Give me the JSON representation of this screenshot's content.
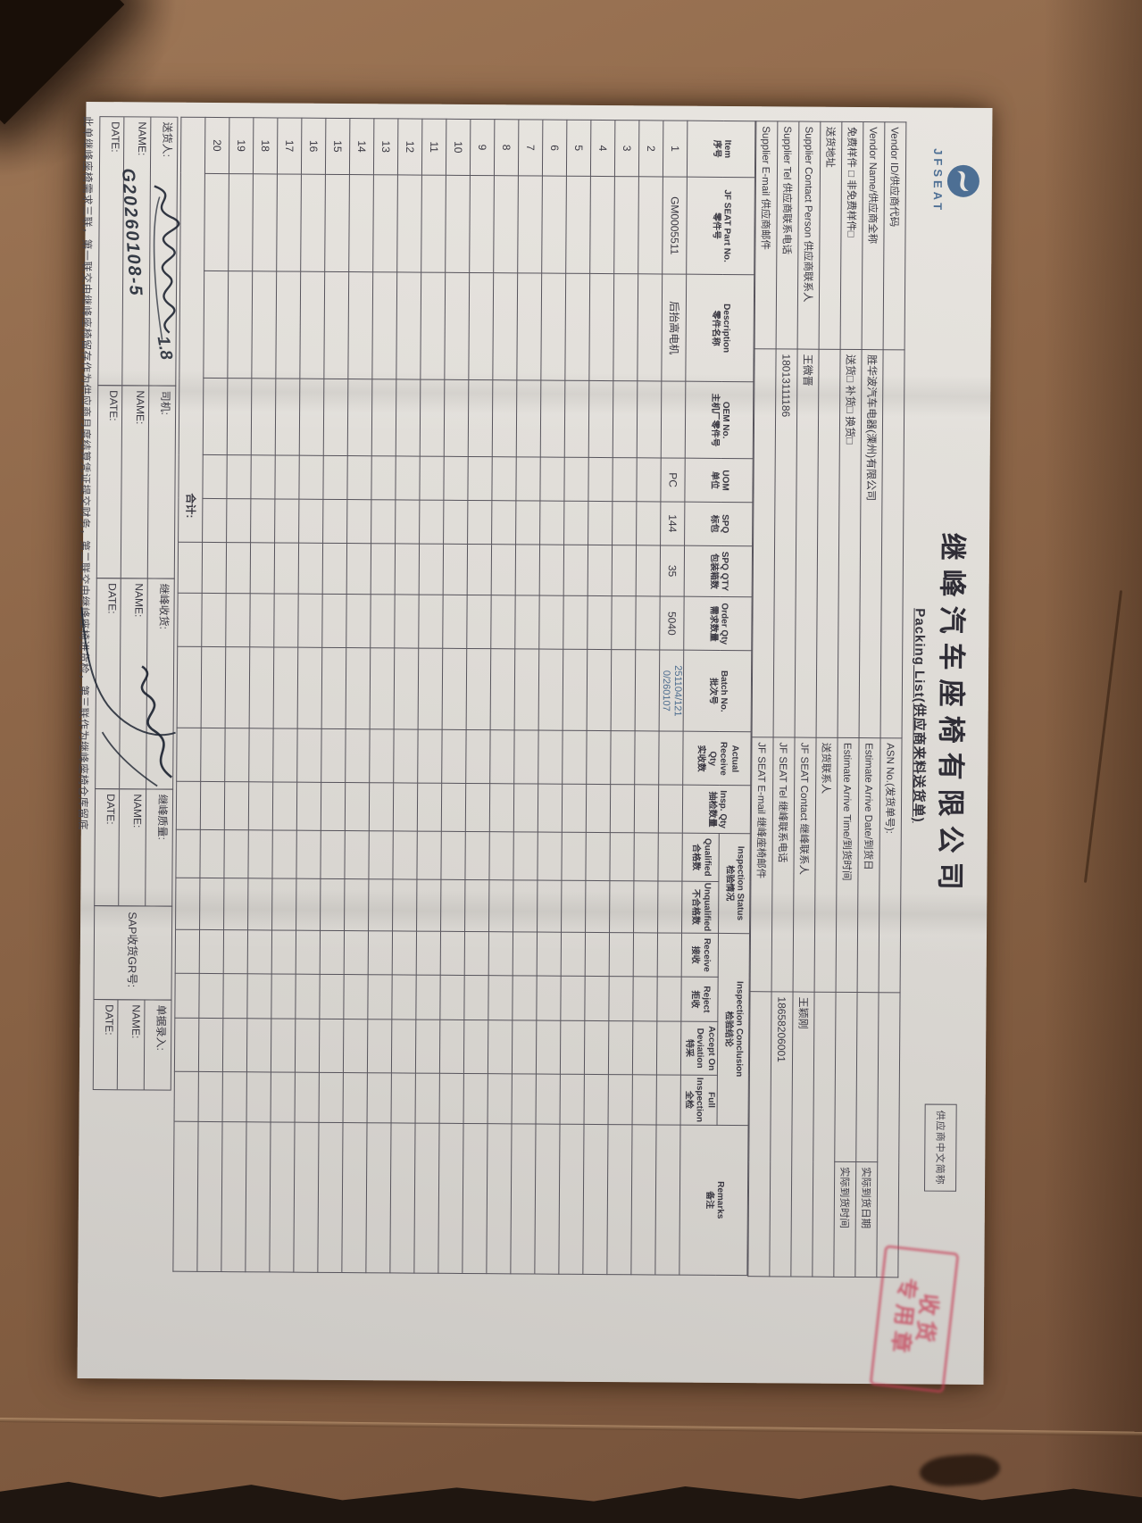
{
  "photo": {
    "background_hint": "brown cardboard surface, torn dark edge at bottom",
    "cardboard_color": "#8e6749"
  },
  "colors": {
    "ink": "#393741",
    "grid_line": "#57545c",
    "printed_blue": "#4a6b8e",
    "logo_blue": "#4d6f94",
    "stamp_red": "#c63e56"
  },
  "doc": {
    "brand": {
      "logo_icon": "jfseat-logo-icon",
      "logo_text": "JFSEAT"
    },
    "title": "继峰汽车座椅有限公司",
    "subtitle": "Packing List(供应商来料送货单)",
    "supplier_short_name_label": "供应商中文简称",
    "stamp": {
      "line1": "收货",
      "line2": "专用章"
    },
    "header": {
      "rows": [
        {
          "l": "Vendor ID/供应商代码",
          "lv": "",
          "r": "ASN No.(发货单号):",
          "rv": ""
        },
        {
          "l": "Vendor Name/供应商全称",
          "lv": "胜华波汽车电器(溧州)有限公司",
          "r": "Estimate Arrive Date/到货日",
          "rv": "",
          "extra": "实际到货日期"
        },
        {
          "l": "免费样件 □      非免费样件□",
          "lv": "送货□    补货□    换货□",
          "r": "Estimate Arrive Time/到货时间",
          "rv": "",
          "extra": "实际到货时间"
        },
        {
          "l": "送货地址",
          "lv": "",
          "r": "送货联系人",
          "rv": ""
        },
        {
          "l": "Supplier Contact Person 供应商联系人",
          "lv": "王微晋",
          "r": "JF SEAT Contact 继峰联系人",
          "rv": "王颖刚"
        },
        {
          "l": "Supplier Tel 供应商联系电话",
          "lv": "18013111186",
          "r": "JF SEAT Tel 继峰联系电话",
          "rv": "18658206001"
        },
        {
          "l": "Supplier E-mail 供应商邮件",
          "lv": "",
          "r": "JF SEAT E-mail 继峰座椅邮件",
          "rv": ""
        }
      ]
    },
    "table": {
      "groups": [
        {
          "en": "Inspection Status",
          "zh": "检验情况"
        },
        {
          "en": "Inspection Conclusion",
          "zh": "检验结论"
        }
      ],
      "columns": [
        {
          "en": "Item",
          "zh": "序号"
        },
        {
          "en": "JF SEAT Part No.",
          "zh": "零件号"
        },
        {
          "en": "Description",
          "zh": "零件名称"
        },
        {
          "en": "OEM No.",
          "zh": "主机厂零件号"
        },
        {
          "en": "UOM",
          "zh": "单位"
        },
        {
          "en": "SPQ",
          "zh": "标包"
        },
        {
          "en": "SPQ QTY",
          "zh": "包装箱数"
        },
        {
          "en": "Order Qty",
          "zh": "需求数量"
        },
        {
          "en": "Batch No.",
          "zh": "批次号"
        },
        {
          "en": "Actual Receive Qty",
          "zh": "实收数"
        },
        {
          "en": "Insp. Qty",
          "zh": "抽检数量"
        },
        {
          "en": "Qualified",
          "zh": "合格数",
          "group": 0
        },
        {
          "en": "Unqualified",
          "zh": "不合格数",
          "group": 0
        },
        {
          "en": "Receive",
          "zh": "接收",
          "group": 1
        },
        {
          "en": "Reject",
          "zh": "拒收",
          "group": 1
        },
        {
          "en": "Accept On Deviation",
          "zh": "特采",
          "group": 1
        },
        {
          "en": "Full Inspection",
          "zh": "全检",
          "group": 1
        },
        {
          "en": "Remarks",
          "zh": "备注"
        }
      ],
      "row_numbers": [
        "1",
        "2",
        "3",
        "4",
        "5",
        "6",
        "7",
        "8",
        "9",
        "10",
        "11",
        "12",
        "13",
        "14",
        "15",
        "16",
        "17",
        "18",
        "19",
        "20"
      ],
      "row1": {
        "no": "1",
        "part_no": "GM0005511",
        "description": "后抬高电机",
        "oem_no": "",
        "uom": "PC",
        "spq": "144",
        "spq_qty": "35",
        "order_qty": "5040",
        "batch_line1": "251104/121",
        "batch_line2": "0/260107"
      },
      "total_label": "合计:"
    },
    "footer": {
      "sections": [
        {
          "label": "送货人:",
          "name": "NAME:",
          "date": "DATE:"
        },
        {
          "label": "司机:",
          "name": "NAME:",
          "date": "DATE:"
        },
        {
          "label": "继峰收货:",
          "name": "NAME:",
          "date": "DATE:"
        },
        {
          "label": "继峰质量:",
          "name": "NAME:",
          "date": "DATE:"
        },
        {
          "label": "SAP收货GR号:"
        },
        {
          "label": "单据录入:",
          "name": "NAME:",
          "date": "DATE:"
        }
      ],
      "footnote": "此单继峰座椅需求三联，第一联交由继峰座椅留存作为供应商月度结算凭证提交财务，第二联交由继峰座椅进货检，第三联作为继峰座椅仓库留底"
    },
    "handwriting": {
      "deliverer_code": "G20260108-5",
      "deliverer_note": "1.8"
    }
  }
}
